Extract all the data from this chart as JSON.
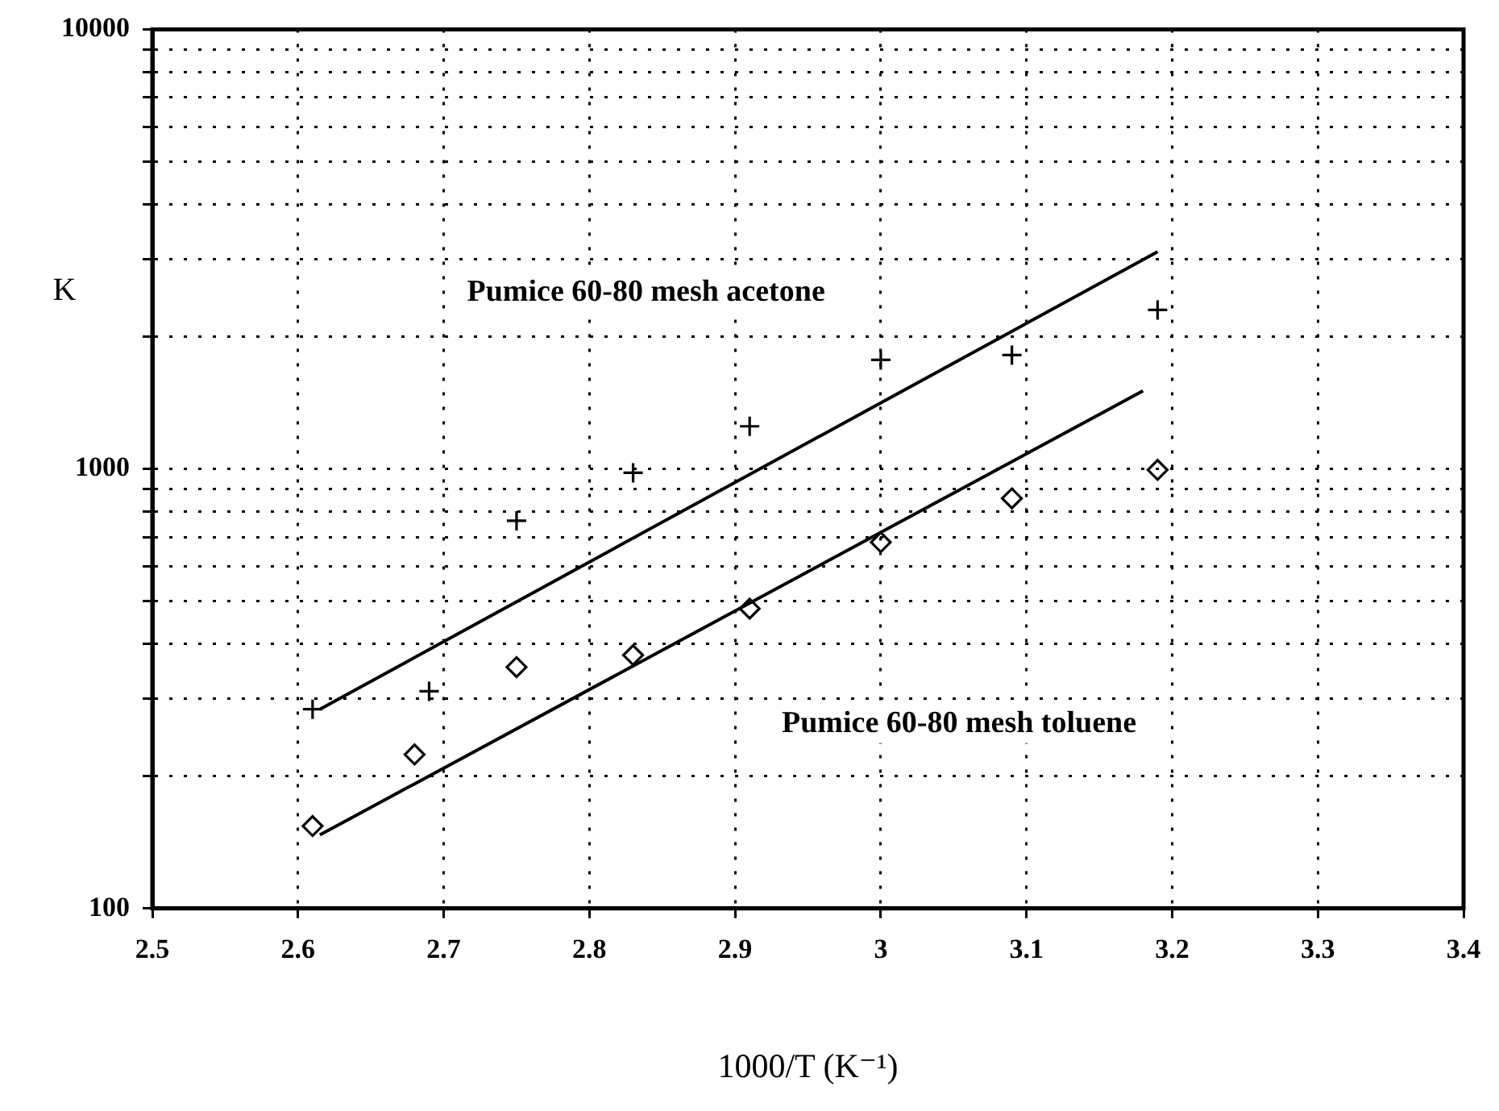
{
  "chart_data": {
    "type": "scatter",
    "xlabel": "1000/T (K⁻¹)",
    "ylabel": "K",
    "log": "y",
    "xlim": [
      2.5,
      3.4
    ],
    "xticks": [
      2.5,
      2.6,
      2.7,
      2.8,
      2.9,
      3,
      3.1,
      3.2,
      3.3,
      3.4
    ],
    "ylim": [
      100,
      10000
    ],
    "yticks": [
      100,
      {
        "value": 200,
        "label": null
      },
      {
        "value": 300,
        "label": null
      },
      {
        "value": 400,
        "label": null
      },
      {
        "value": 500,
        "label": null
      },
      {
        "value": 600,
        "label": null
      },
      {
        "value": 700,
        "label": null
      },
      {
        "value": 800,
        "label": null
      },
      {
        "value": 900,
        "label": null
      },
      1000,
      {
        "value": 2000,
        "label": null
      },
      {
        "value": 3000,
        "label": null
      },
      {
        "value": 4000,
        "label": null
      },
      {
        "value": 5000,
        "label": null
      },
      {
        "value": 6000,
        "label": null
      },
      {
        "value": 7000,
        "label": null
      },
      {
        "value": 8000,
        "label": null
      },
      {
        "value": 9000,
        "label": null
      },
      10000
    ],
    "grid": true,
    "series": [
      {
        "marker": "cross",
        "color": "#000000",
        "x": [
          2.61,
          2.69,
          2.75,
          2.83,
          2.91,
          3.0,
          3.09,
          3.19
        ],
        "values": [
          284,
          312,
          762,
          980,
          1250,
          1770,
          1815,
          2300
        ]
      },
      {
        "marker": "diamond",
        "color": "#000000",
        "x": [
          2.61,
          2.68,
          2.75,
          2.83,
          2.91,
          3.0,
          3.09,
          3.19
        ],
        "values": [
          154,
          224,
          354,
          377,
          481,
          681,
          857,
          995
        ]
      },
      {
        "type": "line",
        "marker": "none",
        "line_style": "solid",
        "color": "#000000",
        "x": [
          2.615,
          3.19
        ],
        "values": [
          284,
          3120
        ]
      },
      {
        "type": "line",
        "marker": "none",
        "line_style": "solid",
        "color": "#000000",
        "x": [
          2.615,
          3.18
        ],
        "values": [
          147,
          1505
        ]
      }
    ],
    "annotations": [
      "Pumice 60-80 mesh acetone",
      "Pumice 60-80 mesh toluene"
    ]
  }
}
